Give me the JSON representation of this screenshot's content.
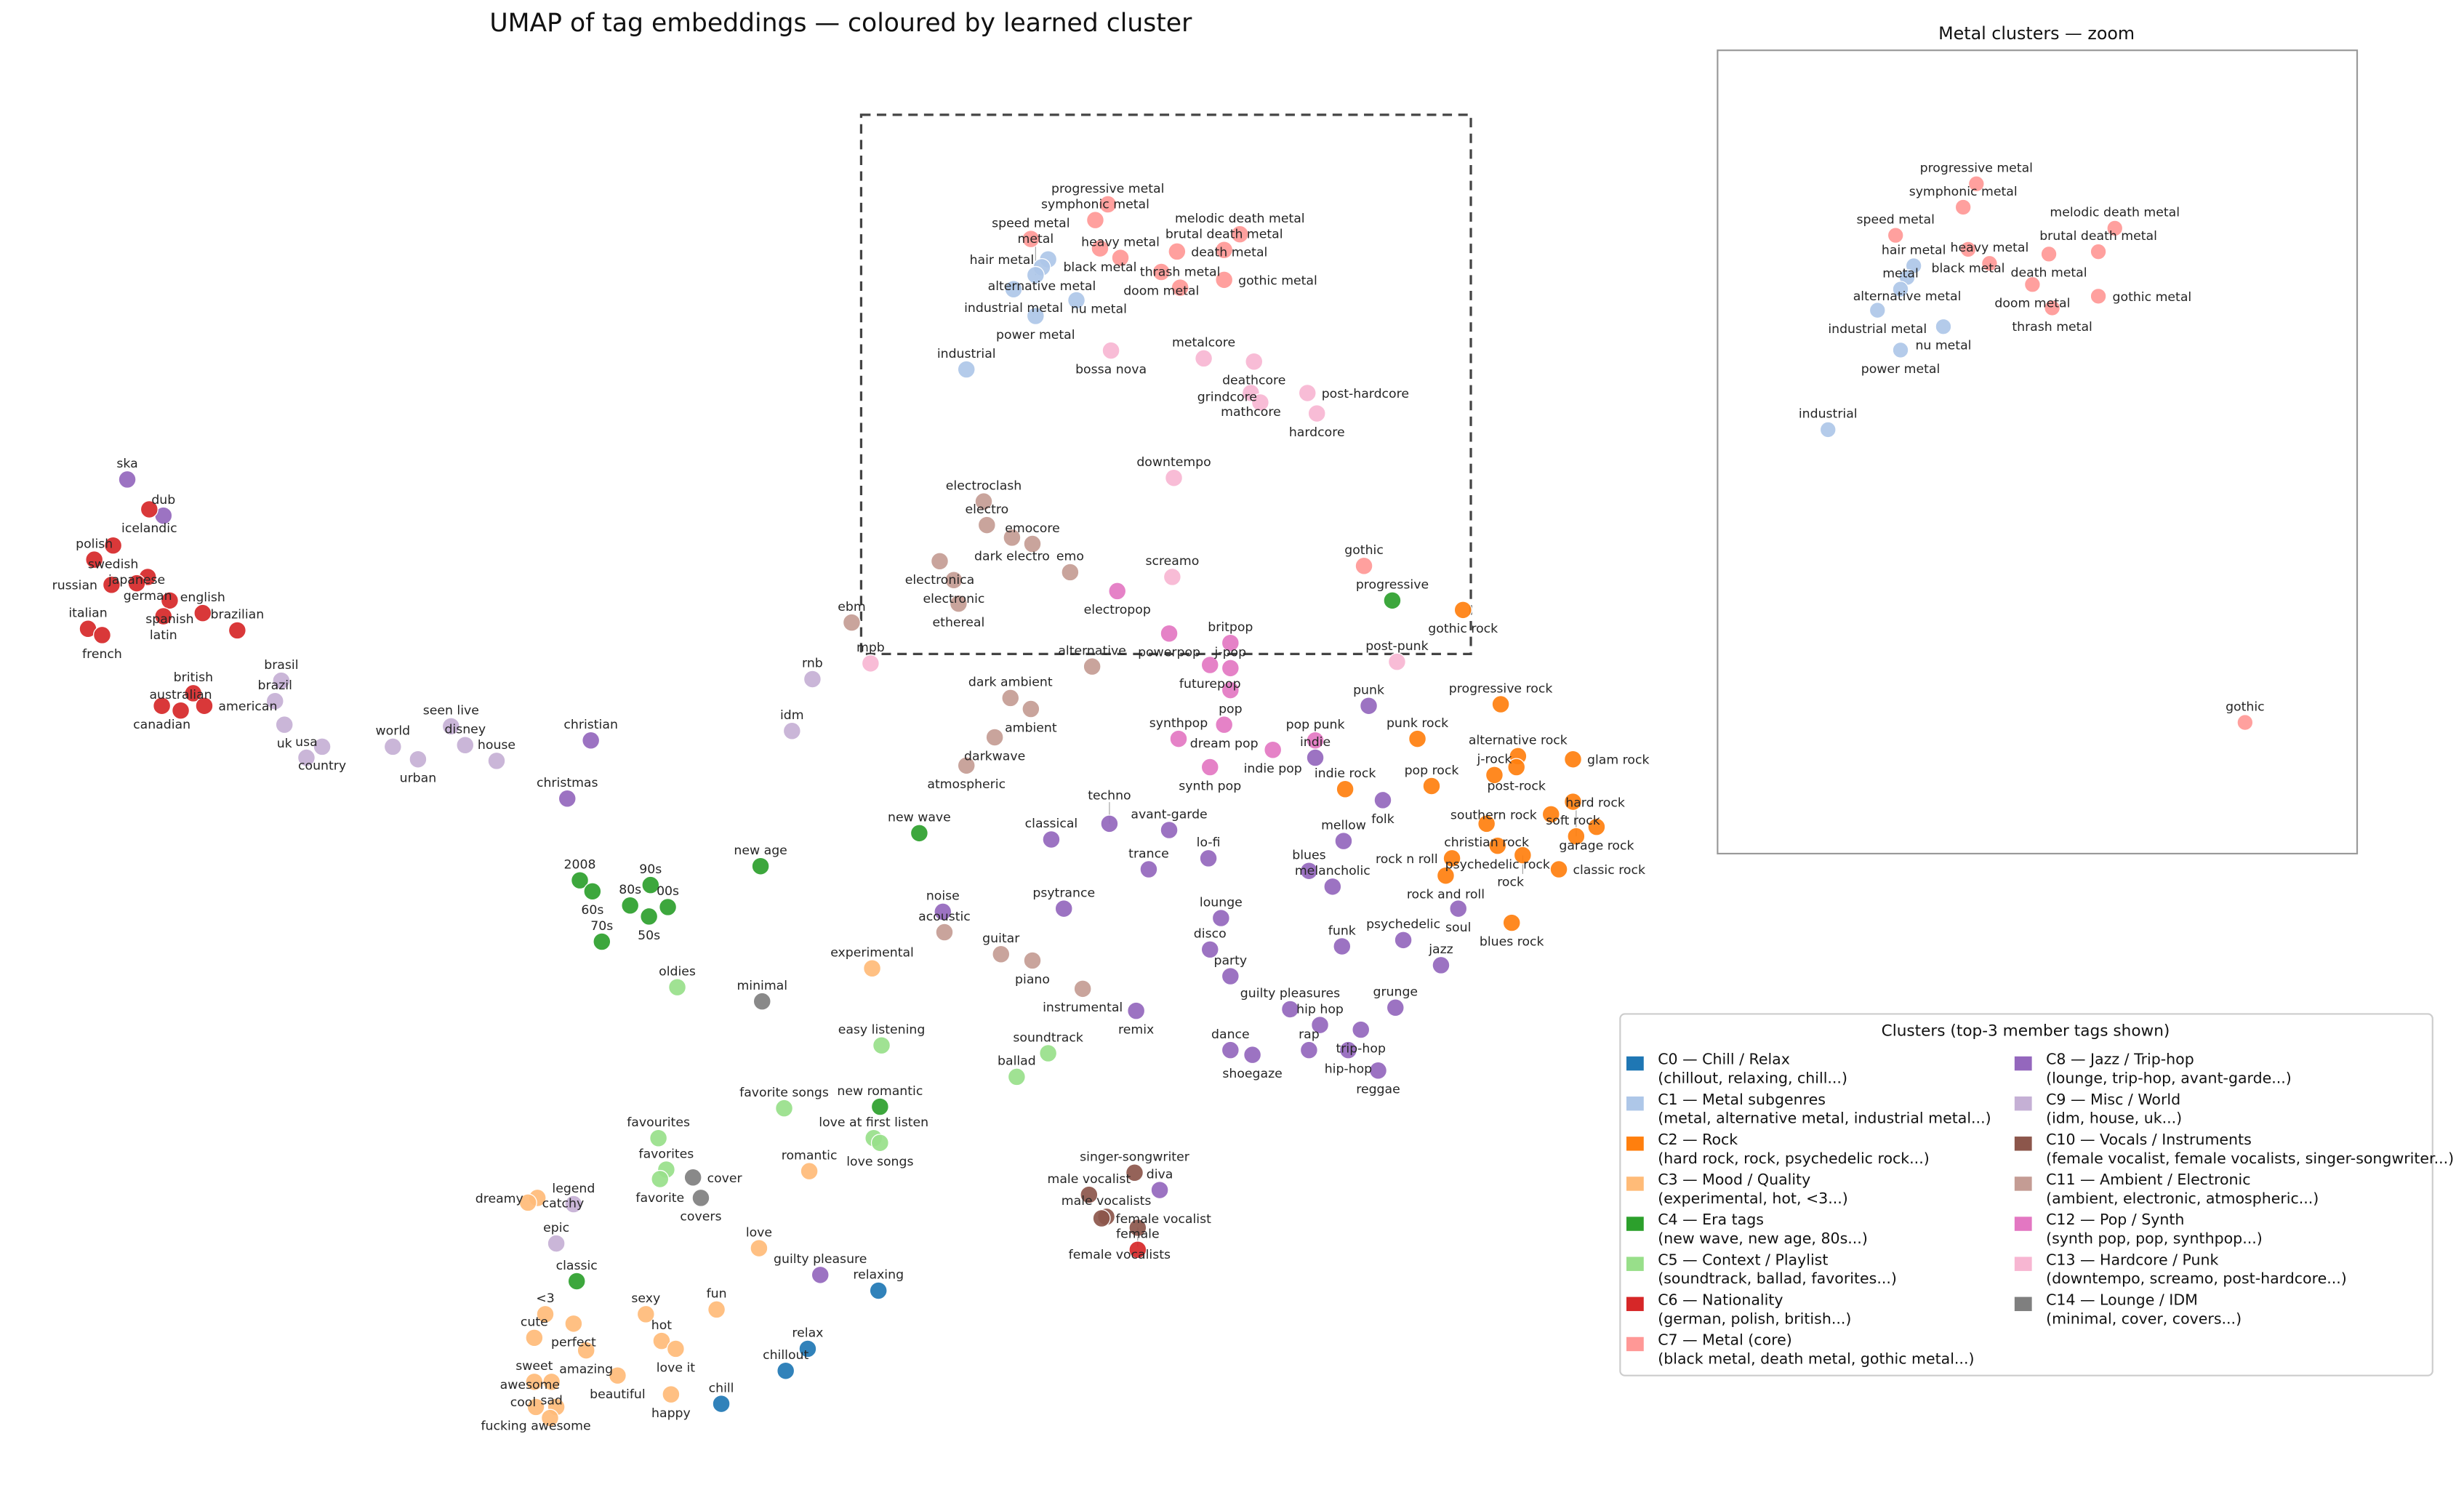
{
  "chart_data": {
    "type": "scatter",
    "title": "UMAP of tag embeddings — coloured by learned cluster",
    "xlim": [
      5.0,
      103.0
    ],
    "ylim": [
      1.5,
      91.0
    ],
    "grid": false,
    "axes_visible": false,
    "zoom_box": {
      "xlim": [
        54.8,
        93.6
      ],
      "ylim": [
        53.4,
        87.7
      ],
      "style": "dashed"
    },
    "inset": {
      "title": "Metal clusters — zoom",
      "clusters_shown": [
        1,
        7
      ],
      "xlim": [
        54.8,
        93.6
      ],
      "ylim": [
        53.4,
        87.7
      ]
    },
    "legend": {
      "title": "Clusters  (top-3 member tags shown)",
      "placement": "lower-right",
      "columns": 2,
      "entries": [
        {
          "id": 0,
          "name": "C0 — Chill / Relax",
          "members": "(chillout, relaxing, chill...)",
          "color": "#1f77b4"
        },
        {
          "id": 1,
          "name": "C1 — Metal subgenres",
          "members": "(metal, alternative metal, industrial metal...)",
          "color": "#aec7e8"
        },
        {
          "id": 2,
          "name": "C2 — Rock",
          "members": "(hard rock, rock, psychedelic rock...)",
          "color": "#ff7f0e"
        },
        {
          "id": 3,
          "name": "C3 — Mood / Quality",
          "members": "(experimental, hot, <3...)",
          "color": "#ffbb78"
        },
        {
          "id": 4,
          "name": "C4 — Era tags",
          "members": "(new wave, new age, 80s...)",
          "color": "#2ca02c"
        },
        {
          "id": 5,
          "name": "C5 — Context / Playlist",
          "members": "(soundtrack, ballad, favorites...)",
          "color": "#98df8a"
        },
        {
          "id": 6,
          "name": "C6 — Nationality",
          "members": "(german, polish, british...)",
          "color": "#d62728"
        },
        {
          "id": 7,
          "name": "C7 — Metal (core)",
          "members": "(black metal, death metal, gothic metal...)",
          "color": "#ff9896"
        },
        {
          "id": 8,
          "name": "C8 — Jazz / Trip-hop",
          "members": "(lounge, trip-hop, avant-garde...)",
          "color": "#9467bd"
        },
        {
          "id": 9,
          "name": "C9 — Misc / World",
          "members": "(idm, house, uk...)",
          "color": "#c5b0d5"
        },
        {
          "id": 10,
          "name": "C10 — Vocals / Instruments",
          "members": "(female vocalist, female vocalists, singer-songwriter...)",
          "color": "#8c564b"
        },
        {
          "id": 11,
          "name": "C11 — Ambient / Electronic",
          "members": "(ambient, electronic, atmospheric...)",
          "color": "#c49c94"
        },
        {
          "id": 12,
          "name": "C12 — Pop / Synth",
          "members": "(synth pop, pop, synthpop...)",
          "color": "#e377c2"
        },
        {
          "id": 13,
          "name": "C13 — Hardcore / Punk",
          "members": "(downtempo, screamo, post-hardcore...)",
          "color": "#f7b6d2"
        },
        {
          "id": 14,
          "name": "C14 — Lounge / IDM",
          "members": "(minimal, cover, covers...)",
          "color": "#7f7f7f"
        }
      ]
    },
    "point_fields": [
      "tag",
      "cluster",
      "x",
      "y"
    ],
    "points": [
      [
        "progressive metal",
        7,
        70.5,
        82.0
      ],
      [
        "symphonic metal",
        7,
        69.7,
        81.0
      ],
      [
        "speed metal",
        7,
        65.6,
        79.8
      ],
      [
        "black metal",
        7,
        70.0,
        79.2
      ],
      [
        "heavy metal",
        7,
        71.3,
        78.6
      ],
      [
        "death metal",
        7,
        74.9,
        79.0
      ],
      [
        "brutal death metal",
        7,
        77.9,
        79.1
      ],
      [
        "melodic death metal",
        7,
        78.9,
        80.1
      ],
      [
        "doom metal",
        7,
        73.9,
        77.7
      ],
      [
        "thrash metal",
        7,
        75.1,
        76.7
      ],
      [
        "gothic metal",
        7,
        77.9,
        77.2
      ],
      [
        "gothic",
        7,
        86.8,
        59.0
      ],
      [
        "hair metal",
        1,
        66.7,
        78.5
      ],
      [
        "alternative metal",
        1,
        66.3,
        78.0
      ],
      [
        "metal",
        1,
        65.9,
        77.5
      ],
      [
        "industrial metal",
        1,
        64.5,
        76.6
      ],
      [
        "nu metal",
        1,
        68.5,
        75.9
      ],
      [
        "power metal",
        1,
        65.9,
        74.9
      ],
      [
        "industrial",
        1,
        61.5,
        71.5
      ],
      [
        "bossa nova",
        13,
        70.7,
        72.7
      ],
      [
        "metalcore",
        13,
        76.6,
        72.2
      ],
      [
        "deathcore",
        13,
        79.8,
        72.0
      ],
      [
        "mathcore",
        13,
        79.6,
        70.0
      ],
      [
        "post-hardcore",
        13,
        83.2,
        70.0
      ],
      [
        "grindcore",
        13,
        80.2,
        69.4
      ],
      [
        "hardcore",
        13,
        83.8,
        68.7
      ],
      [
        "downtempo",
        13,
        74.7,
        64.6
      ],
      [
        "screamo",
        13,
        74.6,
        58.3
      ],
      [
        "post-punk",
        13,
        88.9,
        52.9
      ],
      [
        "mpb",
        13,
        55.4,
        52.8
      ],
      [
        "electroclash",
        11,
        62.6,
        63.1
      ],
      [
        "electro",
        11,
        62.8,
        61.6
      ],
      [
        "dark electro",
        11,
        64.4,
        60.8
      ],
      [
        "emocore",
        11,
        65.7,
        60.4
      ],
      [
        "electronica",
        11,
        59.8,
        59.3
      ],
      [
        "electronic",
        11,
        60.7,
        58.1
      ],
      [
        "ethereal",
        11,
        61.0,
        56.6
      ],
      [
        "emo",
        11,
        68.1,
        58.6
      ],
      [
        "ebm",
        11,
        54.2,
        55.4
      ],
      [
        "alternative",
        11,
        69.5,
        52.6
      ],
      [
        "dark ambient",
        11,
        64.3,
        50.6
      ],
      [
        "ambient",
        11,
        65.6,
        49.9
      ],
      [
        "darkwave",
        11,
        63.3,
        48.1
      ],
      [
        "atmospheric",
        11,
        61.5,
        46.3
      ],
      [
        "acoustic",
        11,
        60.1,
        35.7
      ],
      [
        "guitar",
        11,
        63.7,
        34.3
      ],
      [
        "piano",
        11,
        65.7,
        33.9
      ],
      [
        "instrumental",
        11,
        68.9,
        32.1
      ],
      [
        "electropop",
        12,
        71.1,
        57.4
      ],
      [
        "powerpop",
        12,
        74.4,
        54.7
      ],
      [
        "britpop",
        12,
        78.3,
        54.1
      ],
      [
        "futurepop",
        12,
        77.0,
        52.7
      ],
      [
        "j-pop",
        12,
        78.3,
        52.5
      ],
      [
        "pop",
        12,
        78.3,
        51.1
      ],
      [
        "dream pop",
        12,
        77.9,
        48.9
      ],
      [
        "synthpop",
        12,
        75.0,
        48.0
      ],
      [
        "synth pop",
        12,
        77.0,
        46.2
      ],
      [
        "indie pop",
        12,
        81.0,
        47.3
      ],
      [
        "pop punk",
        12,
        83.7,
        47.9
      ],
      [
        "progressive",
        4,
        88.6,
        56.8
      ],
      [
        "new wave",
        4,
        58.5,
        42.0
      ],
      [
        "new age",
        4,
        48.4,
        39.9
      ],
      [
        "2008",
        4,
        36.9,
        39.0
      ],
      [
        "60s",
        4,
        37.7,
        38.3
      ],
      [
        "90s",
        4,
        41.4,
        38.7
      ],
      [
        "80s",
        4,
        40.1,
        37.4
      ],
      [
        "50s",
        4,
        41.3,
        36.7
      ],
      [
        "00s",
        4,
        42.5,
        37.3
      ],
      [
        "70s",
        4,
        38.3,
        35.1
      ],
      [
        "new romantic",
        4,
        56.0,
        24.6
      ],
      [
        "classic",
        4,
        36.7,
        13.5
      ],
      [
        "gothic rock",
        2,
        93.1,
        56.2
      ],
      [
        "progressive rock",
        2,
        95.5,
        50.2
      ],
      [
        "punk rock",
        2,
        90.2,
        48.0
      ],
      [
        "alternative rock",
        2,
        96.6,
        46.9
      ],
      [
        "post-rock",
        2,
        96.5,
        46.2
      ],
      [
        "glam rock",
        2,
        100.1,
        46.7
      ],
      [
        "j-rock",
        2,
        95.1,
        45.7
      ],
      [
        "indie rock",
        2,
        85.6,
        44.8
      ],
      [
        "pop rock",
        2,
        91.1,
        45.0
      ],
      [
        "soft rock",
        2,
        100.1,
        44.0
      ],
      [
        "southern rock",
        2,
        98.7,
        43.2
      ],
      [
        "garage rock",
        2,
        101.6,
        42.4
      ],
      [
        "hard rock",
        2,
        100.3,
        41.8
      ],
      [
        "christian rock",
        2,
        94.6,
        42.6
      ],
      [
        "psychedelic rock",
        2,
        95.3,
        41.2
      ],
      [
        "rock",
        2,
        96.9,
        40.6
      ],
      [
        "rock n roll",
        2,
        92.4,
        40.4
      ],
      [
        "rock and roll",
        2,
        92.0,
        39.3
      ],
      [
        "classic rock",
        2,
        99.2,
        39.7
      ],
      [
        "blues rock",
        2,
        96.2,
        36.3
      ],
      [
        "punk",
        8,
        87.1,
        50.1
      ],
      [
        "indie",
        8,
        83.7,
        46.8
      ],
      [
        "folk",
        8,
        88.0,
        44.1
      ],
      [
        "mellow",
        8,
        85.5,
        41.5
      ],
      [
        "blues",
        8,
        83.3,
        39.6
      ],
      [
        "melancholic",
        8,
        84.8,
        38.6
      ],
      [
        "soul",
        8,
        92.8,
        37.2
      ],
      [
        "funk",
        8,
        85.4,
        34.8
      ],
      [
        "psychedelic",
        8,
        89.3,
        35.2
      ],
      [
        "jazz",
        8,
        91.7,
        33.6
      ],
      [
        "avant-garde",
        8,
        74.4,
        42.2
      ],
      [
        "lo-fi",
        8,
        76.9,
        40.4
      ],
      [
        "trance",
        8,
        73.1,
        39.7
      ],
      [
        "lounge",
        8,
        77.7,
        36.6
      ],
      [
        "disco",
        8,
        77.0,
        34.6
      ],
      [
        "party",
        8,
        78.3,
        32.9
      ],
      [
        "remix",
        8,
        72.3,
        30.7
      ],
      [
        "guilty pleasures",
        8,
        82.1,
        30.8
      ],
      [
        "hip hop",
        8,
        84.0,
        29.8
      ],
      [
        "trip-hop",
        8,
        86.6,
        29.5
      ],
      [
        "grunge",
        8,
        88.8,
        30.9
      ],
      [
        "rap",
        8,
        83.3,
        28.2
      ],
      [
        "hip-hop",
        8,
        85.8,
        28.2
      ],
      [
        "reggae",
        8,
        87.7,
        26.9
      ],
      [
        "dance",
        8,
        78.3,
        28.2
      ],
      [
        "shoegaze",
        8,
        79.7,
        27.9
      ],
      [
        "classical",
        8,
        66.9,
        41.6
      ],
      [
        "techno",
        8,
        70.6,
        42.6
      ],
      [
        "noise",
        8,
        60.0,
        37.0
      ],
      [
        "psytrance",
        8,
        67.7,
        37.2
      ],
      [
        "ska",
        8,
        8.1,
        64.5
      ],
      [
        "dub",
        8,
        10.4,
        62.2
      ],
      [
        "christian",
        8,
        37.6,
        47.9
      ],
      [
        "christmas",
        8,
        36.1,
        44.2
      ],
      [
        "guilty pleasure",
        8,
        52.2,
        13.9
      ],
      [
        "diva",
        8,
        73.8,
        19.3
      ],
      [
        "icelandic",
        6,
        9.5,
        62.6
      ],
      [
        "swedish",
        6,
        7.2,
        60.3
      ],
      [
        "polish",
        6,
        6.0,
        59.4
      ],
      [
        "german",
        6,
        9.4,
        58.3
      ],
      [
        "japanese",
        6,
        8.7,
        57.9
      ],
      [
        "russian",
        6,
        7.1,
        57.8
      ],
      [
        "spanish",
        6,
        10.8,
        56.8
      ],
      [
        "latin",
        6,
        10.4,
        55.8
      ],
      [
        "english",
        6,
        12.9,
        56.0
      ],
      [
        "brazilian",
        6,
        15.1,
        54.9
      ],
      [
        "italian",
        6,
        5.6,
        55.0
      ],
      [
        "french",
        6,
        6.5,
        54.6
      ],
      [
        "british",
        6,
        12.3,
        50.9
      ],
      [
        "canadian",
        6,
        10.3,
        50.1
      ],
      [
        "australian",
        6,
        11.5,
        49.8
      ],
      [
        "american",
        6,
        13.0,
        50.1
      ],
      [
        "female",
        6,
        72.4,
        15.5
      ],
      [
        "brasil",
        9,
        17.9,
        51.7
      ],
      [
        "brazil",
        9,
        17.5,
        50.4
      ],
      [
        "uk",
        9,
        18.1,
        48.9
      ],
      [
        "usa",
        9,
        19.5,
        46.8
      ],
      [
        "country",
        9,
        20.5,
        47.5
      ],
      [
        "world",
        9,
        25.0,
        47.5
      ],
      [
        "urban",
        9,
        26.6,
        46.7
      ],
      [
        "seen live",
        9,
        28.7,
        48.8
      ],
      [
        "disney",
        9,
        29.6,
        47.6
      ],
      [
        "house",
        9,
        31.6,
        46.6
      ],
      [
        "idm",
        9,
        50.4,
        48.5
      ],
      [
        "rnb",
        9,
        51.7,
        51.8
      ],
      [
        "legend",
        9,
        36.5,
        18.4
      ],
      [
        "epic",
        9,
        35.4,
        15.9
      ],
      [
        "oldies",
        5,
        43.1,
        32.2
      ],
      [
        "easy listening",
        5,
        56.1,
        28.5
      ],
      [
        "soundtrack",
        5,
        66.7,
        28.0
      ],
      [
        "ballad",
        5,
        64.7,
        26.5
      ],
      [
        "favorite songs",
        5,
        49.9,
        24.5
      ],
      [
        "love at first listen",
        5,
        55.6,
        22.6
      ],
      [
        "love songs",
        5,
        56.0,
        22.3
      ],
      [
        "favourites",
        5,
        41.9,
        22.6
      ],
      [
        "favorites",
        5,
        42.4,
        20.6
      ],
      [
        "favorite",
        5,
        42.0,
        20.0
      ],
      [
        "minimal",
        14,
        48.5,
        31.3
      ],
      [
        "cover",
        14,
        44.1,
        20.1
      ],
      [
        "covers",
        14,
        44.6,
        18.8
      ],
      [
        "singer-songwriter",
        10,
        72.2,
        20.4
      ],
      [
        "male vocalist",
        10,
        69.3,
        19.0
      ],
      [
        "male vocalists",
        10,
        70.4,
        17.6
      ],
      [
        "female vocalist",
        10,
        70.1,
        17.5
      ],
      [
        "female vocalists",
        10,
        72.4,
        16.9
      ],
      [
        "experimental",
        3,
        55.5,
        33.4
      ],
      [
        "romantic",
        3,
        51.5,
        20.5
      ],
      [
        "love",
        3,
        48.3,
        15.6
      ],
      [
        "dreamy",
        3,
        34.2,
        18.8
      ],
      [
        "catchy",
        3,
        33.6,
        18.5
      ],
      [
        "<3",
        3,
        34.7,
        11.4
      ],
      [
        "perfect",
        3,
        36.5,
        10.8
      ],
      [
        "cute",
        3,
        34.0,
        9.9
      ],
      [
        "sexy",
        3,
        41.1,
        11.4
      ],
      [
        "fun",
        3,
        45.6,
        11.7
      ],
      [
        "hot",
        3,
        42.1,
        9.7
      ],
      [
        "love it",
        3,
        43.0,
        9.2
      ],
      [
        "amazing",
        3,
        37.3,
        9.1
      ],
      [
        "beautiful",
        3,
        39.3,
        7.5
      ],
      [
        "sweet",
        3,
        34.0,
        7.1
      ],
      [
        "sad",
        3,
        35.1,
        7.1
      ],
      [
        "happy",
        3,
        42.7,
        6.3
      ],
      [
        "fucking awesome",
        3,
        34.1,
        5.5
      ],
      [
        "awesome",
        3,
        35.4,
        5.5
      ],
      [
        "cool",
        3,
        35.0,
        4.8
      ],
      [
        "chill",
        0,
        45.9,
        5.7
      ],
      [
        "chillout",
        0,
        50.0,
        7.8
      ],
      [
        "relax",
        0,
        51.4,
        9.2
      ],
      [
        "relaxing",
        0,
        55.9,
        12.9
      ]
    ]
  }
}
